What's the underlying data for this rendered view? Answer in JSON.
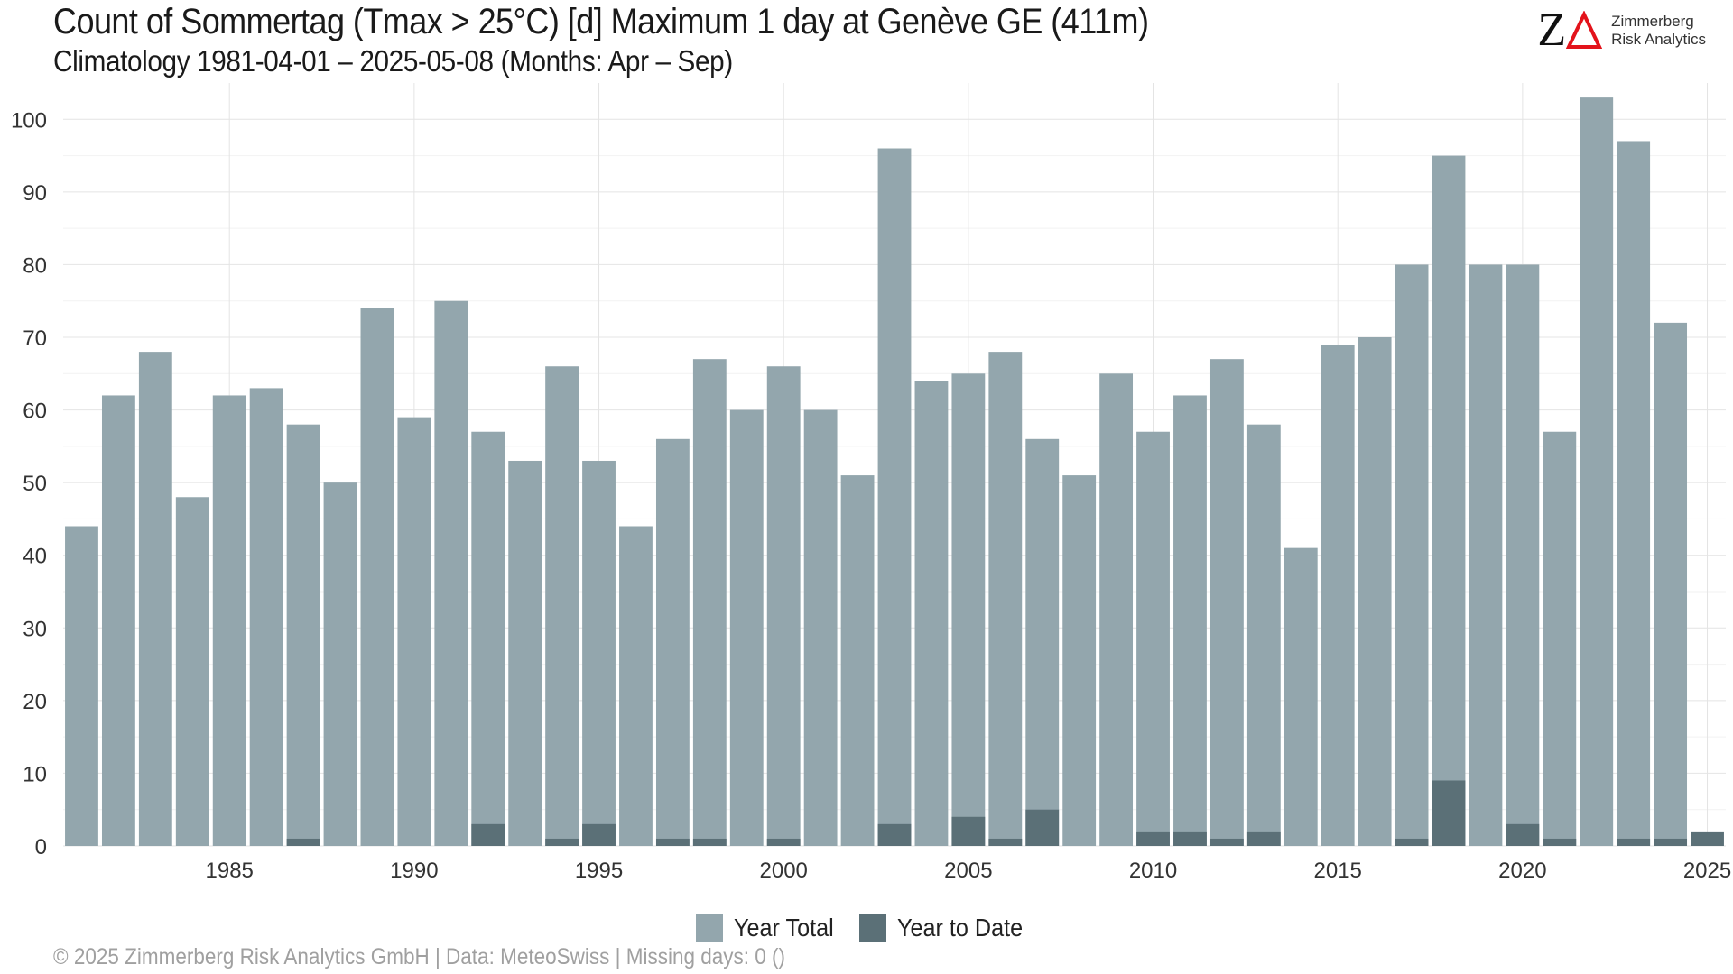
{
  "header": {
    "title": "Count of Sommertag (Tmax > 25°C) [d] Maximum 1 day at Genève  GE (411m)",
    "subtitle": "Climatology 1981-04-01 – 2025-05-08 (Months: Apr – Sep)"
  },
  "logo": {
    "mark": "Z",
    "name_line1": "Zimmerberg",
    "name_line2": "Risk Analytics",
    "accent_color": "#e3131b"
  },
  "footer": {
    "text": "©  2025 Zimmerberg Risk Analytics GmbH | Data: MeteoSwiss | Missing days: 0 ()"
  },
  "chart_data": {
    "type": "bar",
    "x": [
      1981,
      1982,
      1983,
      1984,
      1985,
      1986,
      1987,
      1988,
      1989,
      1990,
      1991,
      1992,
      1993,
      1994,
      1995,
      1996,
      1997,
      1998,
      1999,
      2000,
      2001,
      2002,
      2003,
      2004,
      2005,
      2006,
      2007,
      2008,
      2009,
      2010,
      2011,
      2012,
      2013,
      2014,
      2015,
      2016,
      2017,
      2018,
      2019,
      2020,
      2021,
      2022,
      2023,
      2024,
      2025
    ],
    "series": [
      {
        "name": "Year Total",
        "color": "#93a6ad",
        "values": [
          44,
          62,
          68,
          48,
          62,
          63,
          58,
          50,
          74,
          59,
          75,
          57,
          53,
          66,
          53,
          44,
          56,
          67,
          60,
          66,
          60,
          51,
          96,
          64,
          65,
          68,
          56,
          51,
          65,
          57,
          62,
          67,
          58,
          41,
          69,
          70,
          80,
          95,
          80,
          80,
          57,
          103,
          97,
          72,
          0
        ]
      },
      {
        "name": "Year to Date",
        "color": "#5b7077",
        "values": [
          0,
          0,
          0,
          0,
          0,
          0,
          1,
          0,
          0,
          0,
          0,
          3,
          0,
          1,
          3,
          0,
          1,
          1,
          0,
          1,
          0,
          0,
          3,
          0,
          4,
          1,
          5,
          0,
          0,
          2,
          2,
          1,
          2,
          0,
          0,
          0,
          1,
          9,
          0,
          3,
          1,
          0,
          1,
          1,
          2
        ]
      }
    ],
    "x_ticks": [
      "1985",
      "1990",
      "1995",
      "2000",
      "2005",
      "2010",
      "2015",
      "2020",
      "2025"
    ],
    "y_ticks": [
      "0",
      "10",
      "20",
      "30",
      "40",
      "50",
      "60",
      "70",
      "80",
      "90",
      "100"
    ],
    "xlim": [
      1980.5,
      2025.5
    ],
    "ylim": [
      0,
      105
    ],
    "grid": true,
    "legend_position": "bottom"
  }
}
